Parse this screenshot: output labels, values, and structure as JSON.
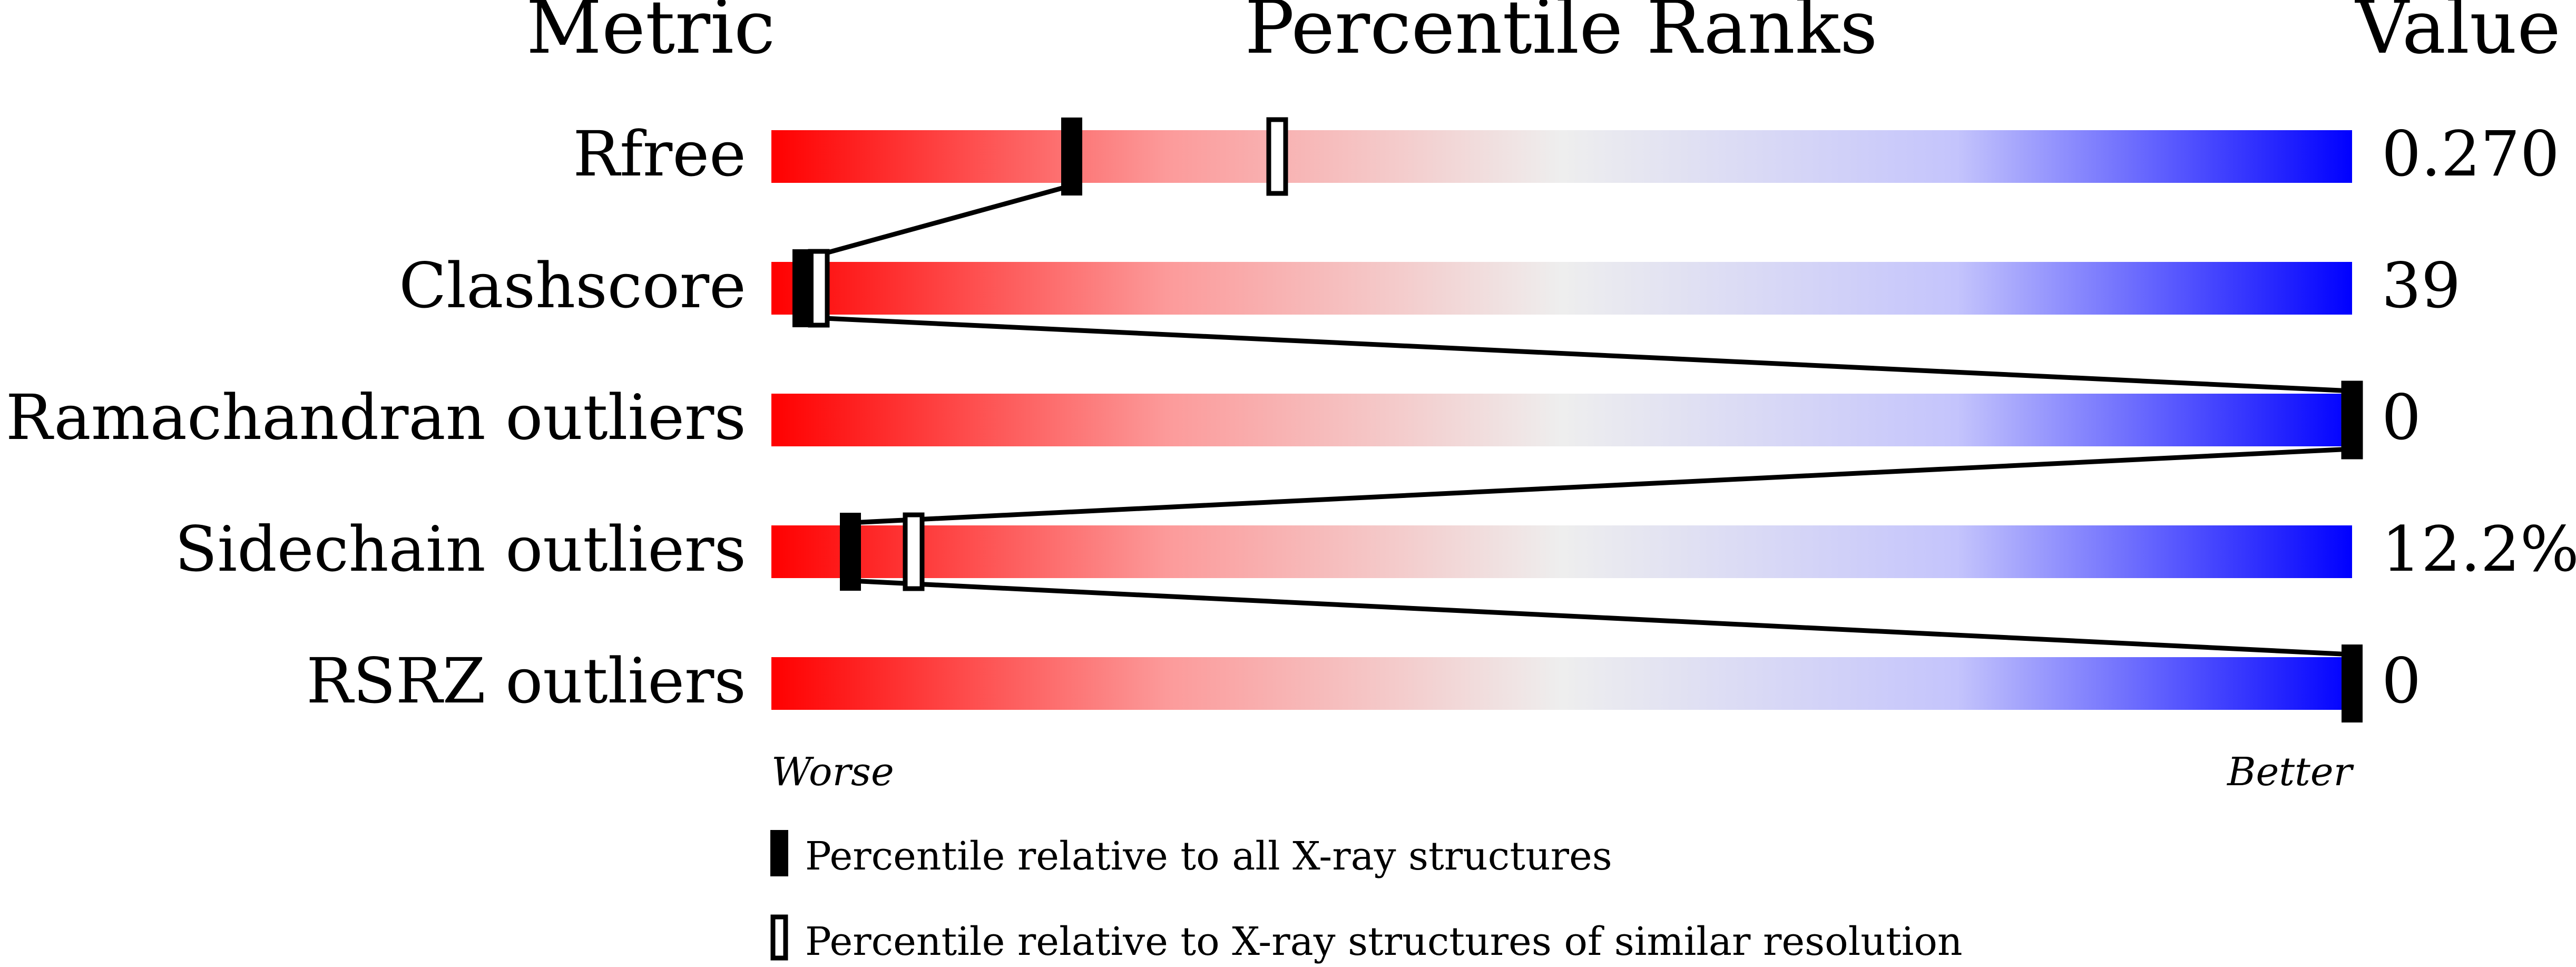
{
  "chart_data": {
    "type": "percentile-slider",
    "headers": {
      "metric": "Metric",
      "ranks": "Percentile Ranks",
      "value": "Value"
    },
    "xlim": [
      0,
      100
    ],
    "axis_labels": {
      "left": "Worse",
      "right": "Better"
    },
    "gradient_colors": [
      "#ff0000",
      "#eeeeee",
      "#0000ff"
    ],
    "rows": [
      {
        "metric": "Rfree",
        "value": "0.270",
        "percentile_all": 19,
        "percentile_similar": 32
      },
      {
        "metric": "Clashscore",
        "value": "39",
        "percentile_all": 2,
        "percentile_similar": 3
      },
      {
        "metric": "Ramachandran outliers",
        "value": "0",
        "percentile_all": 100,
        "percentile_similar": 100
      },
      {
        "metric": "Sidechain outliers",
        "value": "12.2%",
        "percentile_all": 5,
        "percentile_similar": 9
      },
      {
        "metric": "RSRZ outliers",
        "value": "0",
        "percentile_all": 100,
        "percentile_similar": null
      }
    ],
    "legend": [
      {
        "marker": "filled",
        "label": "Percentile relative to all X-ray structures"
      },
      {
        "marker": "open",
        "label": "Percentile relative to X-ray structures of similar resolution"
      }
    ]
  }
}
